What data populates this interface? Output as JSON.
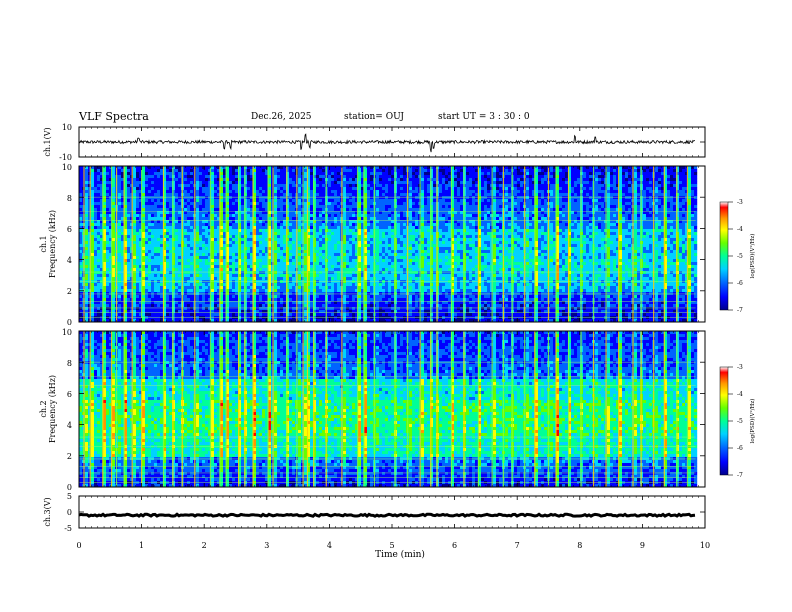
{
  "header": {
    "title": "VLF Spectra",
    "date": "Dec.26, 2025",
    "station": "station= OUJ",
    "start": "start  UT =   3  : 30 : 0"
  },
  "chart_data": [
    {
      "type": "line",
      "panel": "ch1-waveform",
      "ylabel": "ch.1(V)",
      "ylim": [
        -10,
        10
      ],
      "yticks": [
        "10",
        "-10"
      ],
      "baseline": 0,
      "noise_amplitude": 1,
      "spikes": [
        {
          "t": 0.95,
          "v": 3
        },
        {
          "t": 2.32,
          "v": -6
        },
        {
          "t": 2.42,
          "v": -5
        },
        {
          "t": 3.55,
          "v": -6
        },
        {
          "t": 3.62,
          "v": 6
        },
        {
          "t": 3.68,
          "v": -5
        },
        {
          "t": 5.62,
          "v": -7
        },
        {
          "t": 5.66,
          "v": -5
        },
        {
          "t": 7.92,
          "v": 5
        },
        {
          "t": 8.25,
          "v": 4
        }
      ]
    },
    {
      "type": "heatmap",
      "panel": "ch1-spectrogram",
      "ylabel": "ch.1\nFrequency (kHz)",
      "ylim": [
        0,
        10
      ],
      "yticks": [
        "0",
        "2",
        "4",
        "6",
        "8",
        "10"
      ],
      "colorbar_label": "log(PSD)(V²/Hz)",
      "colorbar_range": [
        -7,
        -3
      ],
      "colorbar_ticks": [
        "-3",
        "-4",
        "-5",
        "-6",
        "-7"
      ]
    },
    {
      "type": "heatmap",
      "panel": "ch2-spectrogram",
      "ylabel": "ch.2\nFrequency (kHz)",
      "ylim": [
        0,
        10
      ],
      "yticks": [
        "0",
        "2",
        "4",
        "6",
        "8",
        "10"
      ],
      "colorbar_label": "log(PSD)(V²/Hz)",
      "colorbar_range": [
        -7,
        -3
      ],
      "colorbar_ticks": [
        "-3",
        "-4",
        "-5",
        "-6",
        "-7"
      ]
    },
    {
      "type": "line",
      "panel": "ch3-waveform",
      "ylabel": "ch.3(V)",
      "ylim": [
        -5,
        5
      ],
      "yticks": [
        "5",
        "0",
        "-5"
      ],
      "baseline": -1,
      "noise_amplitude": 0.3
    }
  ],
  "x_axis": {
    "xlabel": "Time (min)",
    "xlim": [
      0,
      10
    ],
    "data_end": 9.85,
    "ticks": [
      "0",
      "1",
      "2",
      "3",
      "4",
      "5",
      "6",
      "7",
      "8",
      "9",
      "10"
    ]
  },
  "events": [
    0.08,
    0.18,
    0.38,
    0.52,
    0.6,
    0.72,
    0.85,
    1.0,
    1.35,
    1.5,
    1.65,
    1.85,
    2.1,
    2.25,
    2.35,
    2.55,
    2.65,
    2.78,
    3.02,
    3.1,
    3.32,
    3.48,
    3.58,
    3.65,
    3.75,
    3.95,
    4.2,
    4.45,
    4.55,
    4.72,
    5.05,
    5.25,
    5.45,
    5.62,
    5.72,
    5.95,
    6.15,
    6.38,
    6.6,
    6.78,
    6.92,
    7.12,
    7.28,
    7.5,
    7.62,
    7.82,
    8.02,
    8.22,
    8.42,
    8.62,
    8.85,
    8.98,
    9.18,
    9.35,
    9.55,
    9.72
  ],
  "colors": {
    "scale": [
      "#00008c",
      "#0000ff",
      "#0064ff",
      "#00d2ff",
      "#00ff96",
      "#64ff00",
      "#ffff00",
      "#ff9600",
      "#ff0000",
      "#ffffff"
    ]
  }
}
